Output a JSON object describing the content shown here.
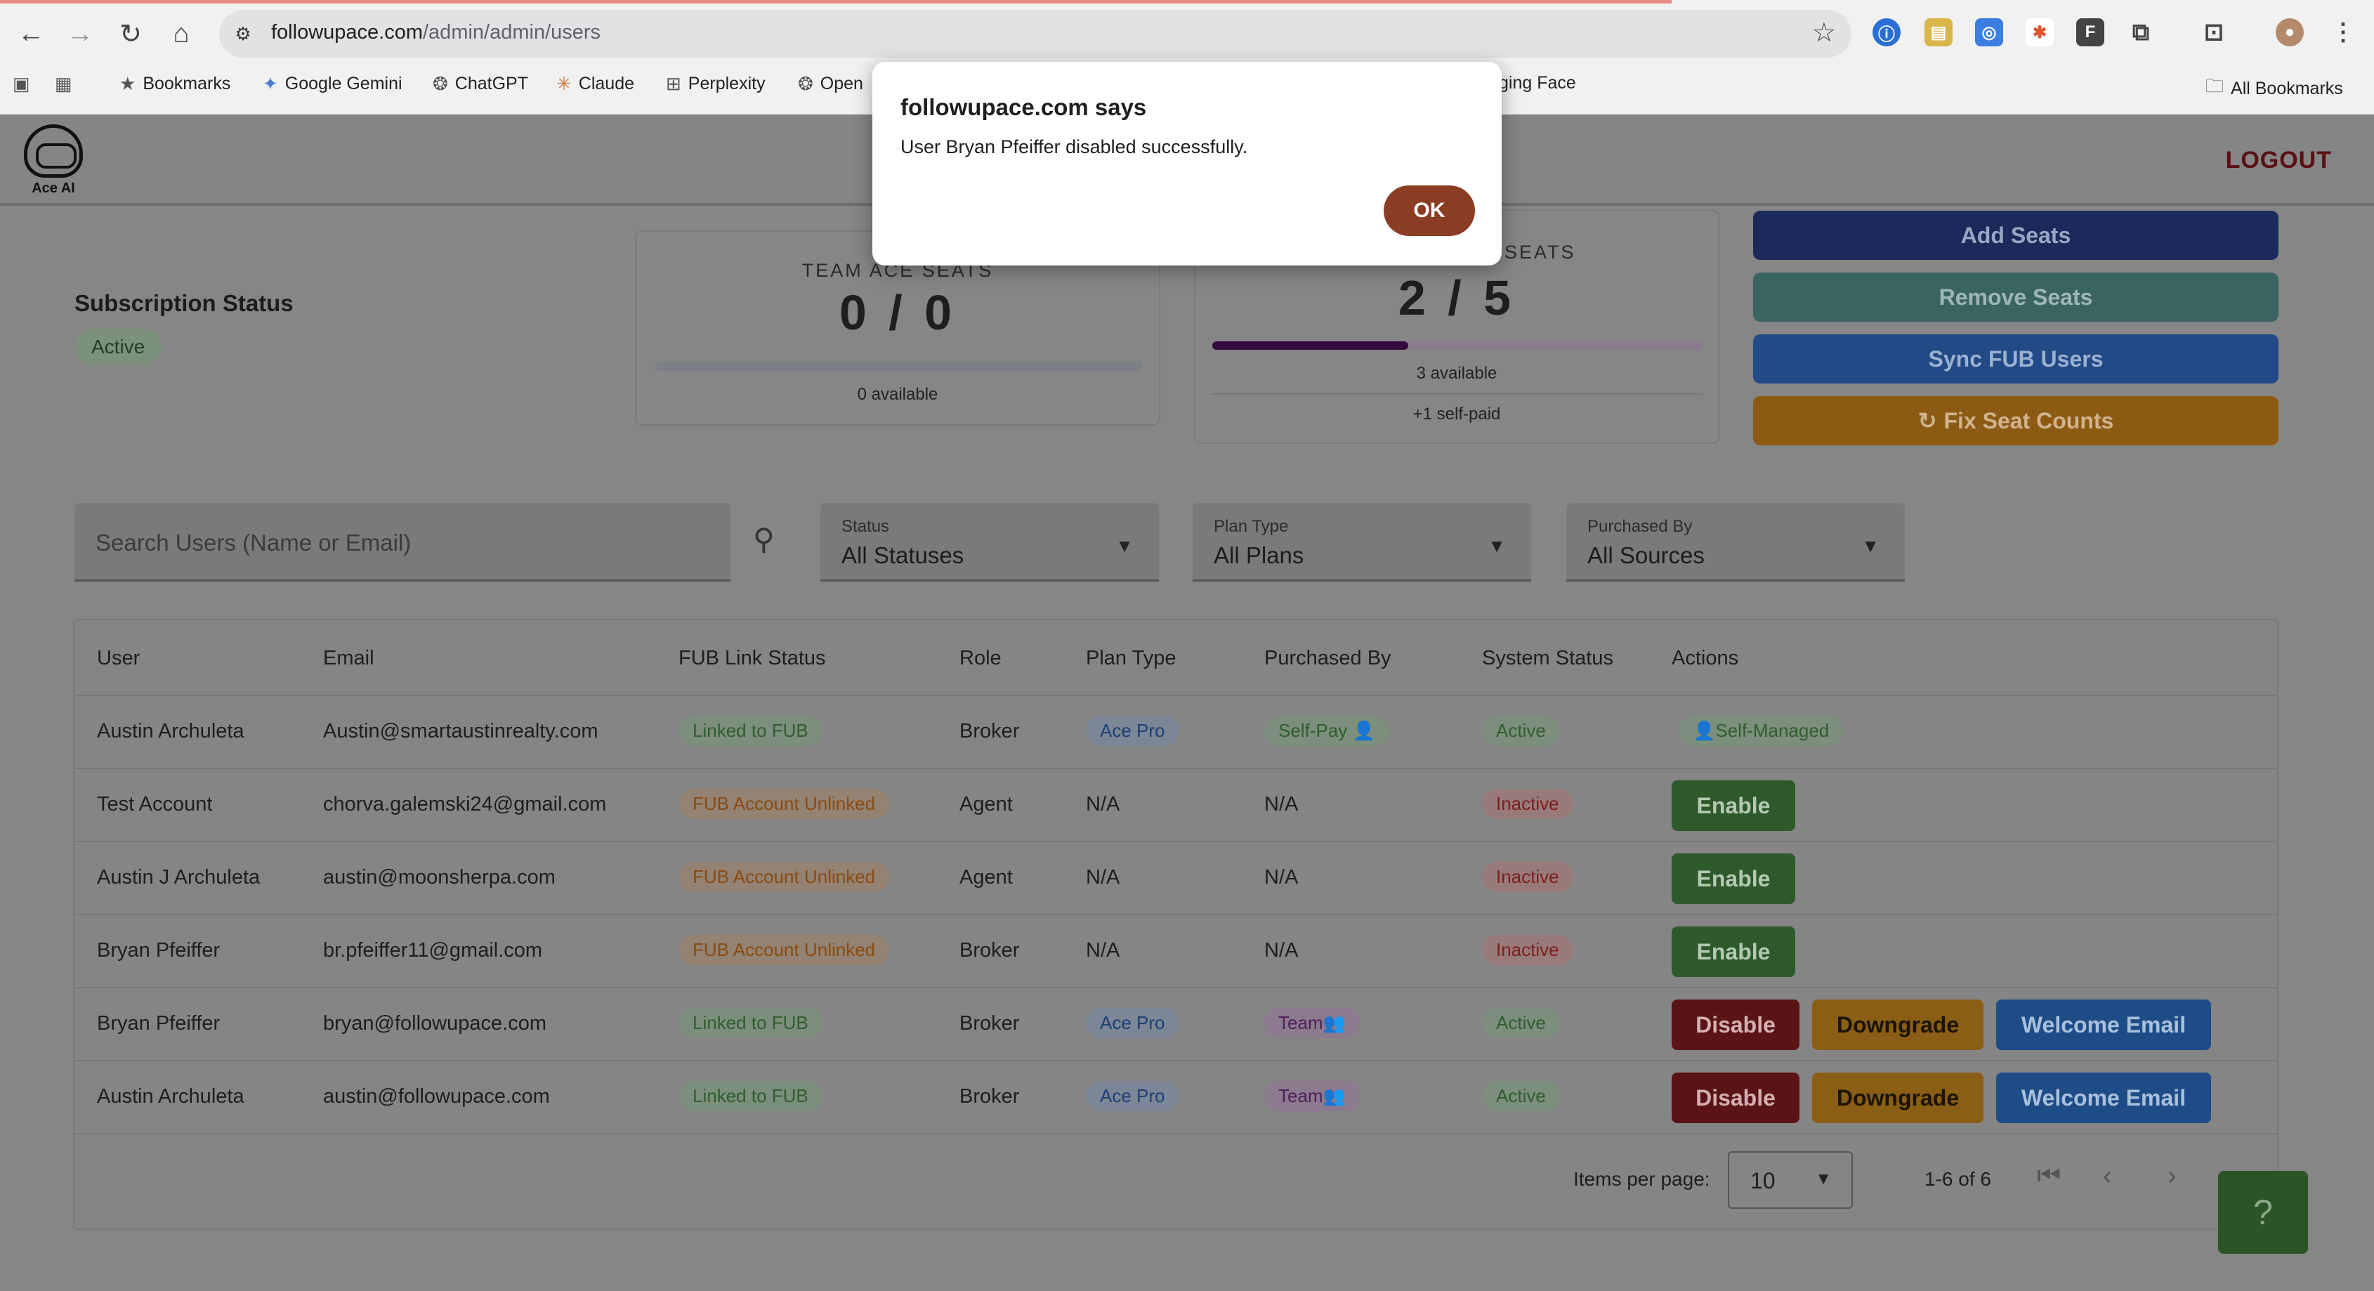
{
  "browser": {
    "url_host": "followupace.com",
    "url_path": "/admin/admin/users",
    "bookmarks": [
      "Bookmarks",
      "Google Gemini",
      "ChatGPT",
      "Claude",
      "Perplexity",
      "Open",
      "ging Face"
    ],
    "all_bookmarks": "All Bookmarks"
  },
  "header": {
    "logo_text": "Ace AI",
    "logout": "LOGOUT"
  },
  "subscription": {
    "title": "Subscription Status",
    "status": "Active"
  },
  "team_seats": {
    "title": "TEAM ACE SEATS",
    "value": "0 / 0",
    "available": "0 available",
    "fill_fraction": 0
  },
  "pro_seats": {
    "title": "SEATS",
    "value": "2 / 5",
    "available": "3 available",
    "self_paid": "+1 self-paid",
    "fill_fraction": 0.4
  },
  "actions": {
    "add_seats": "Add Seats",
    "remove_seats": "Remove Seats",
    "sync_fub": "Sync FUB Users",
    "fix_seat": "Fix Seat Counts"
  },
  "filters": {
    "search_placeholder": "Search Users (Name or Email)",
    "status_label": "Status",
    "status_value": "All Statuses",
    "plan_label": "Plan Type",
    "plan_value": "All Plans",
    "purchased_label": "Purchased By",
    "purchased_value": "All Sources"
  },
  "table": {
    "headers": [
      "User",
      "Email",
      "FUB Link Status",
      "Role",
      "Plan Type",
      "Purchased By",
      "System Status",
      "Actions"
    ],
    "rows": [
      {
        "user": "Austin Archuleta",
        "email": "Austin@smartaustinrealty.com",
        "fub": "Linked to FUB",
        "role": "Broker",
        "plan": "Ace Pro",
        "purchased": "Self-Pay",
        "status": "Active",
        "action": "Self-Managed"
      },
      {
        "user": "Test Account",
        "email": "chorva.galemski24@gmail.com",
        "fub": "FUB Account Unlinked",
        "role": "Agent",
        "plan": "N/A",
        "purchased": "N/A",
        "status": "Inactive",
        "action": "Enable"
      },
      {
        "user": "Austin J Archuleta",
        "email": "austin@moonsherpa.com",
        "fub": "FUB Account Unlinked",
        "role": "Agent",
        "plan": "N/A",
        "purchased": "N/A",
        "status": "Inactive",
        "action": "Enable"
      },
      {
        "user": "Bryan Pfeiffer",
        "email": "br.pfeiffer11@gmail.com",
        "fub": "FUB Account Unlinked",
        "role": "Broker",
        "plan": "N/A",
        "purchased": "N/A",
        "status": "Inactive",
        "action": "Enable"
      },
      {
        "user": "Bryan Pfeiffer",
        "email": "bryan@followupace.com",
        "fub": "Linked to FUB",
        "role": "Broker",
        "plan": "Ace Pro",
        "purchased": "Team",
        "status": "Active",
        "action": "Disable",
        "action2": "Downgrade",
        "action3": "Welcome Email"
      },
      {
        "user": "Austin Archuleta",
        "email": "austin@followupace.com",
        "fub": "Linked to FUB",
        "role": "Broker",
        "plan": "Ace Pro",
        "purchased": "Team",
        "status": "Active",
        "action": "Disable",
        "action2": "Downgrade",
        "action3": "Welcome Email"
      }
    ]
  },
  "pagination": {
    "items_label": "Items per page:",
    "items_value": "10",
    "range": "1-6 of 6"
  },
  "help": "?",
  "dialog": {
    "title": "followupace.com says",
    "message": "User Bryan Pfeiffer disabled successfully.",
    "ok": "OK"
  }
}
